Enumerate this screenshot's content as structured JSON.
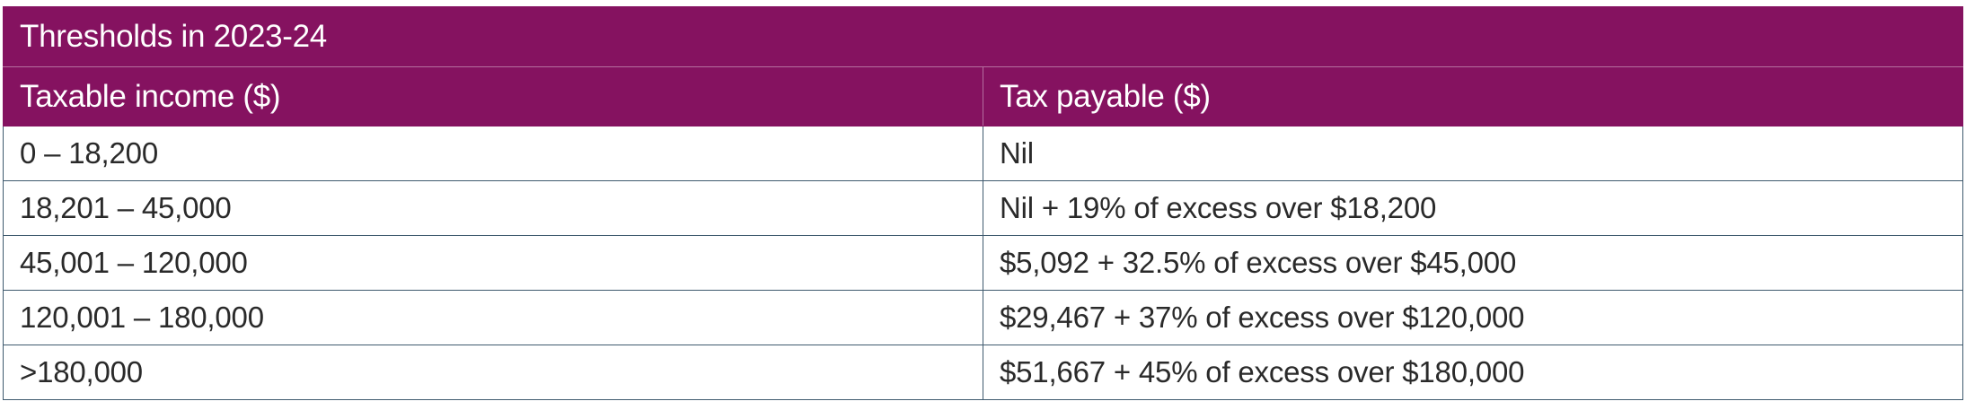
{
  "table": {
    "title": "Thresholds in 2023-24",
    "columns": [
      "Taxable income ($)",
      "Tax payable ($)"
    ],
    "rows": [
      {
        "income": "0 – 18,200",
        "tax": "Nil"
      },
      {
        "income": "18,201 – 45,000",
        "tax": "Nil + 19% of excess over $18,200"
      },
      {
        "income": "45,001 – 120,000",
        "tax": "$5,092 + 32.5% of excess over $45,000"
      },
      {
        "income": "120,001 – 180,000",
        "tax": "$29,467 + 37% of excess over $120,000"
      },
      {
        "income": ">180,000",
        "tax": "$51,667 + 45% of excess over $180,000"
      }
    ]
  },
  "colors": {
    "header_background": "#851260",
    "header_text": "#ffffff",
    "body_text": "#2a2a2a",
    "border": "#3f5a6e"
  }
}
